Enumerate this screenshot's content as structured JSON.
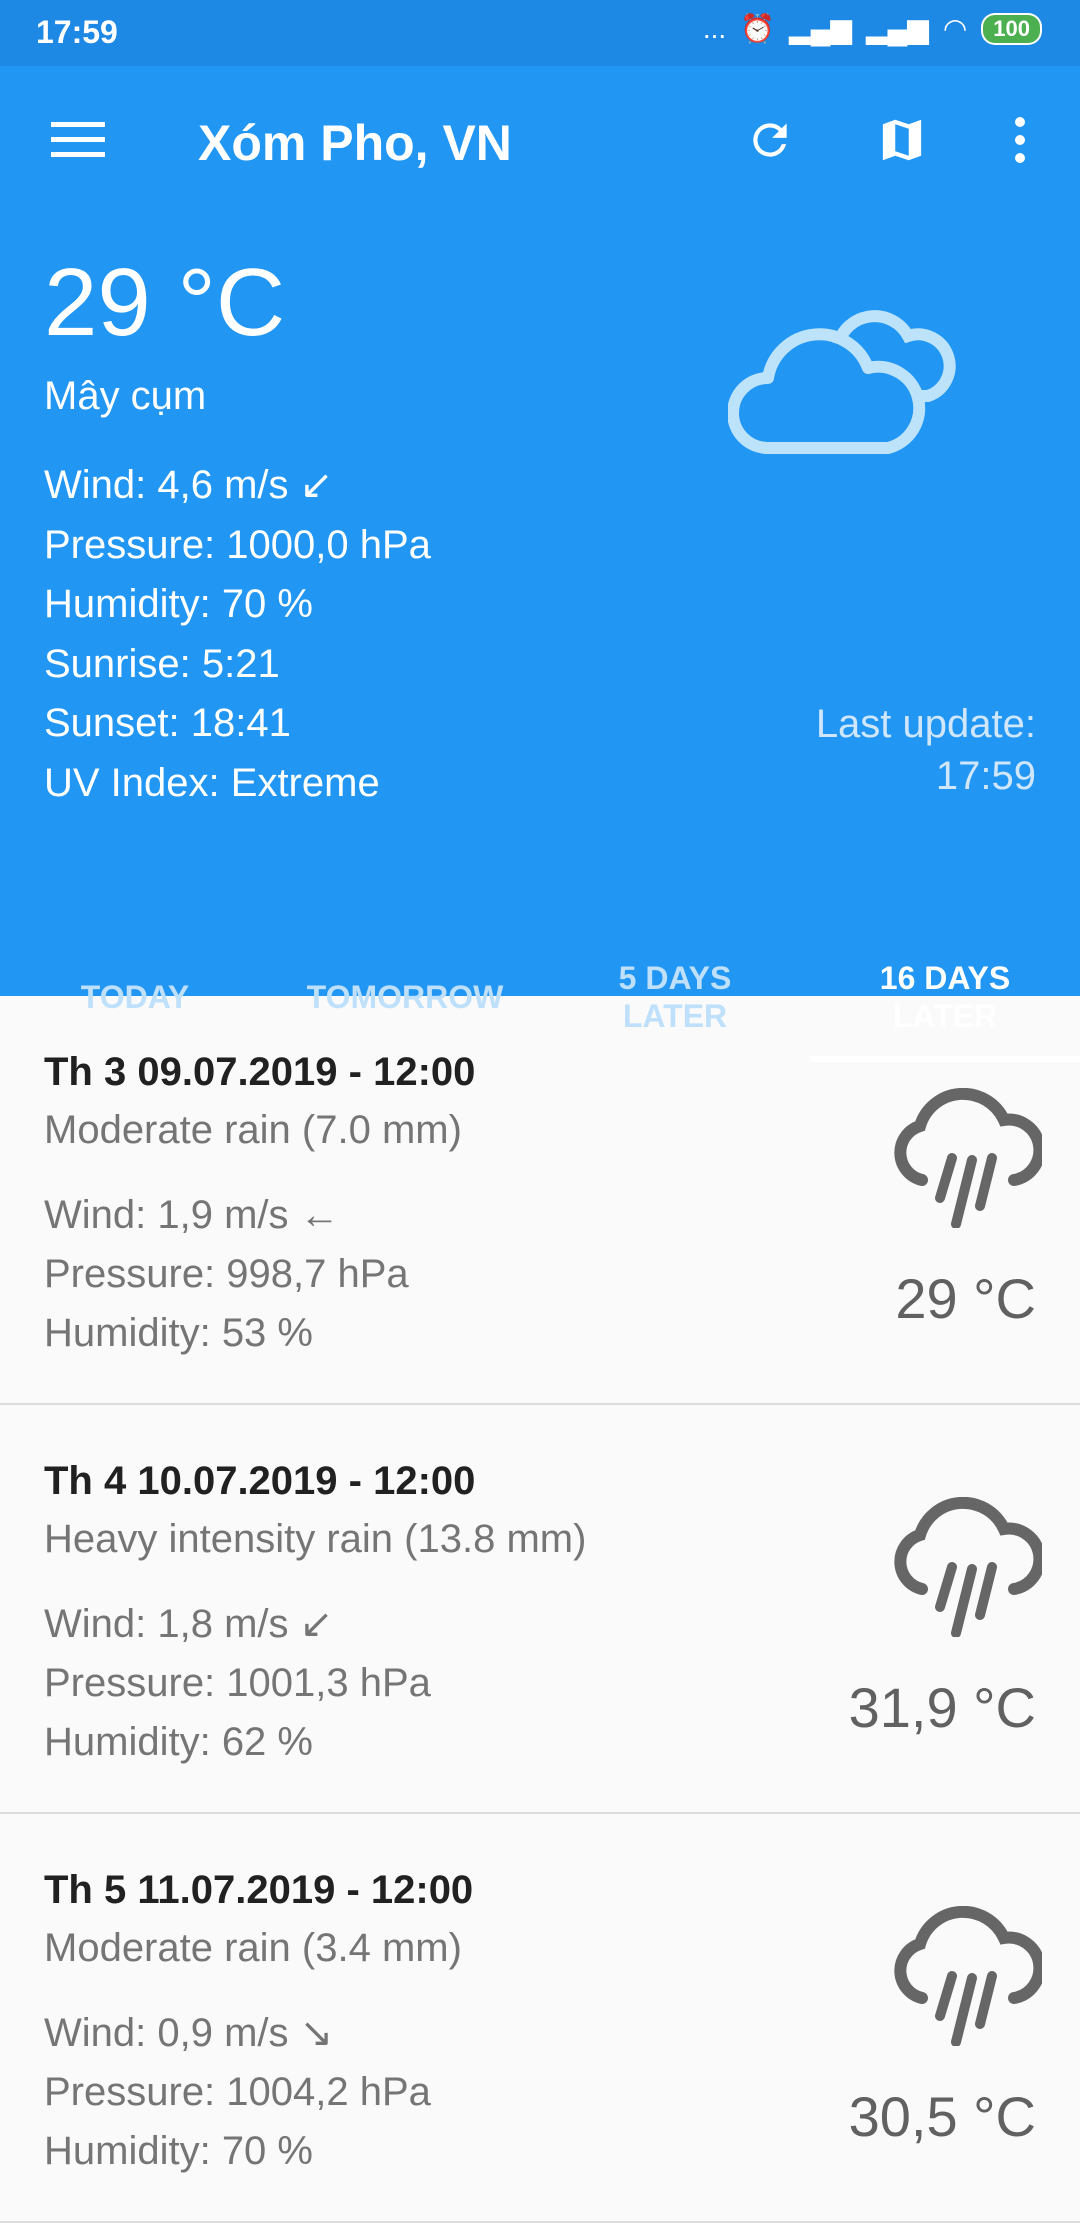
{
  "status_bar": {
    "time": "17:59",
    "battery": "100",
    "more": "..."
  },
  "toolbar": {
    "title": "Xóm Pho, VN",
    "icons": [
      "menu-icon",
      "refresh-icon",
      "map-icon",
      "more-vert-icon"
    ]
  },
  "current": {
    "temperature": "29 °C",
    "description": "Mây cụm",
    "wind": "Wind: 4,6 m/s ↙",
    "pressure": "Pressure: 1000,0 hPa",
    "humidity": "Humidity: 70 %",
    "sunrise": "Sunrise: 5:21",
    "sunset": "Sunset: 18:41",
    "uv": "UV Index: Extreme",
    "last_update_label": "Last update:",
    "last_update_time": "17:59",
    "icon": "cloud-icon"
  },
  "tabs": [
    {
      "label": "TODAY"
    },
    {
      "label": "TOMORROW"
    },
    {
      "label": "5 DAYS LATER"
    },
    {
      "label": "16 DAYS LATER",
      "active": true
    }
  ],
  "forecast": [
    {
      "title": "Th 3 09.07.2019 - 12:00",
      "desc": "Moderate rain (7.0 mm)",
      "wind": "Wind: 1,9 m/s ←",
      "pressure": "Pressure: 998,7 hPa",
      "humidity": "Humidity: 53 %",
      "temp": "29 °C",
      "icon": "rain-icon"
    },
    {
      "title": "Th 4 10.07.2019 - 12:00",
      "desc": "Heavy intensity rain (13.8 mm)",
      "wind": "Wind: 1,8 m/s ↙",
      "pressure": "Pressure: 1001,3 hPa",
      "humidity": "Humidity: 62 %",
      "temp": "31,9 °C",
      "icon": "rain-icon"
    },
    {
      "title": "Th 5 11.07.2019 - 12:00",
      "desc": "Moderate rain (3.4 mm)",
      "wind": "Wind: 0,9 m/s ↘",
      "pressure": "Pressure: 1004,2 hPa",
      "humidity": "Humidity: 70 %",
      "temp": "30,5 °C",
      "icon": "rain-icon"
    }
  ],
  "colors": {
    "primary": "#2196F3",
    "status_bar": "#1E88E5",
    "battery": "#4CAF50"
  }
}
